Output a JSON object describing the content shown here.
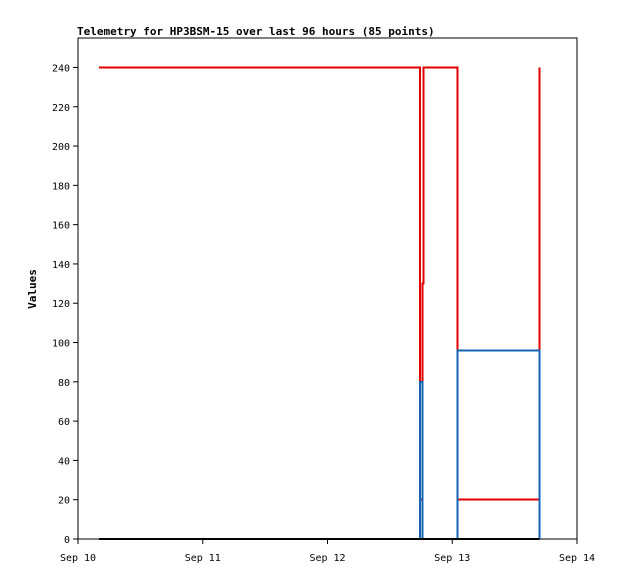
{
  "chart_data": {
    "type": "line",
    "title": "Telemetry for HP3BSM-15 over last 96 hours (85 points)",
    "xlabel": "",
    "ylabel": "Values",
    "x_ticks": [
      "Sep 10",
      "Sep 11",
      "Sep 12",
      "Sep 13",
      "Sep 14"
    ],
    "y_ticks": [
      "0",
      "20",
      "40",
      "60",
      "80",
      "100",
      "120",
      "140",
      "160",
      "180",
      "200",
      "220",
      "240"
    ],
    "xlim": [
      "Sep 10",
      "Sep 14"
    ],
    "ylim": [
      0,
      255
    ],
    "grid": false,
    "legend": "none",
    "series": [
      {
        "color": "#e00000",
        "points": [
          [
            "Sep 10 04:00",
            240
          ],
          [
            "Sep 12 17:45",
            240
          ],
          [
            "Sep 12 17:45",
            80
          ],
          [
            "Sep 12 17:45",
            20
          ],
          [
            "Sep 12 18:15",
            20
          ],
          [
            "Sep 12 18:15",
            40
          ],
          [
            "Sep 12 18:15",
            130
          ],
          [
            "Sep 12 18:30",
            130
          ],
          [
            "Sep 12 18:30",
            240
          ],
          [
            "Sep 13 01:00",
            240
          ],
          [
            "Sep 13 01:00",
            20
          ],
          [
            "Sep 13 16:45",
            20
          ],
          [
            "Sep 13 16:45",
            240
          ]
        ]
      },
      {
        "color": "#1464b4",
        "points": [
          [
            "Sep 12 17:45",
            0
          ],
          [
            "Sep 12 17:45",
            80
          ],
          [
            "Sep 12 18:15",
            80
          ],
          [
            "Sep 12 18:15",
            0
          ],
          [
            "Sep 13 01:00",
            0
          ],
          [
            "Sep 13 01:00",
            96
          ],
          [
            "Sep 13 16:45",
            96
          ],
          [
            "Sep 13 16:45",
            0
          ]
        ]
      },
      {
        "color": "#000000",
        "points": [
          [
            "Sep 10 04:00",
            0
          ],
          [
            "Sep 13 16:45",
            0
          ]
        ]
      }
    ]
  }
}
